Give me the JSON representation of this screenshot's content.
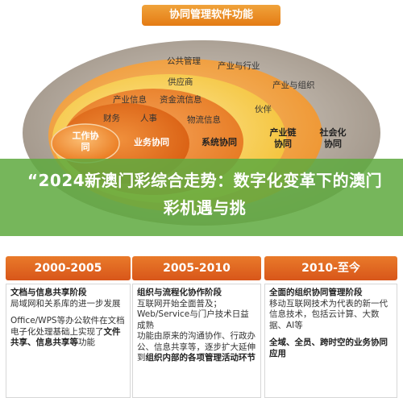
{
  "title": "协同管理软件功能",
  "colors": {
    "outer_ring": "#aa9e8f",
    "ring_orange": "#f3a640",
    "ring_yellow": "#f6cd4c",
    "ring_orange2": "#ef9b38",
    "inner_dark": "#e06a17",
    "core": "#f08a2c",
    "header_orange": "#e2681f",
    "overlay_green": "#60aa40"
  },
  "diagram": {
    "labels": {
      "public_mgmt": "公共管理",
      "industry": "产业与行业",
      "supplier": "供应商",
      "industry_org": "产业与组织",
      "industry_info": "产业信息",
      "capital_info": "资金流信息",
      "partner": "伙伴",
      "finance": "财务",
      "hr": "人事",
      "logistics": "物流信息",
      "work_collab": "工作协\n同",
      "business_collab": "业务协同",
      "system_collab": "系统协同",
      "chain_collab": "产业链\n协同",
      "social_collab": "社会化\n协同",
      "sales": "销售",
      "integration": "集成应用"
    }
  },
  "headline": "“2024新澳门彩综合走势：数字化变革下的澳门彩机遇与挑",
  "columns": [
    {
      "period": "2000-2005",
      "stage": "文档与信息共享阶段",
      "line1": "局域网和关系库的进一步发展",
      "line2_pre": "Office/WPS等办公软件在文档电子化处理基础上实现了",
      "line2_bold": "文件共享、信息共享等",
      "line2_post": "功能"
    },
    {
      "period": "2005-2010",
      "stage": "组织与流程化协作阶段",
      "line1": "互联网开始全面普及；Web/Service与门户技术日益成熟",
      "line2_pre": "功能由原来的沟通协作、行政办公、信息共享等，逐步扩大延伸到",
      "line2_bold": "组织内部的各项管理活动环节",
      "line2_post": ""
    },
    {
      "period": "2010-至今",
      "stage": "全面的组织协同管理阶段",
      "line1": "移动互联网技术为代表的新一代信息技术，包括云计算、大数据、AI等",
      "line2_pre": "",
      "line2_bold": "全域、全员、跨时空的业务协同应用",
      "line2_post": ""
    }
  ]
}
